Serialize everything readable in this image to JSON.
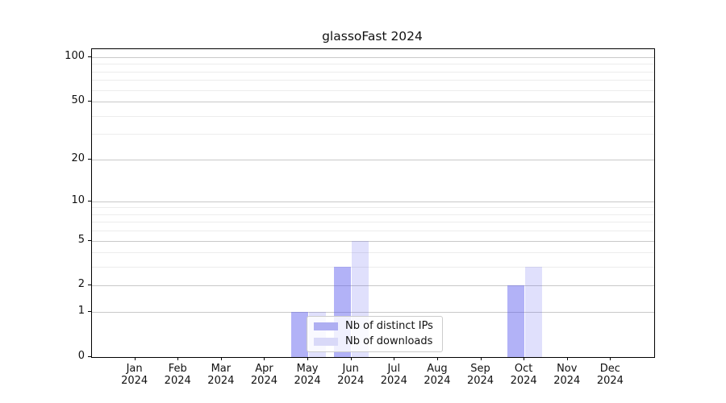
{
  "chart_data": {
    "type": "bar",
    "title": "glassoFast 2024",
    "categories": [
      "Jan",
      "Feb",
      "Mar",
      "Apr",
      "May",
      "Jun",
      "Jul",
      "Aug",
      "Sep",
      "Oct",
      "Nov",
      "Dec"
    ],
    "x_sublabel": "2024",
    "series": [
      {
        "name": "Nb of distinct IPs",
        "color": "rgba(85,85,238,0.45)",
        "legend_color": "#aeaef2",
        "values": [
          0,
          0,
          0,
          0,
          1,
          3,
          0,
          0,
          0,
          2,
          0,
          0
        ]
      },
      {
        "name": "Nb of downloads",
        "color": "rgba(85,85,238,0.18)",
        "legend_color": "#d9d9f8",
        "values": [
          0,
          0,
          0,
          0,
          1,
          5,
          0,
          0,
          0,
          3,
          0,
          0
        ]
      }
    ],
    "y_ticks": [
      0,
      1,
      2,
      5,
      10,
      20,
      50,
      100
    ],
    "y_minor_gridlines": [
      3,
      4,
      6,
      7,
      8,
      9,
      30,
      40,
      60,
      70,
      80,
      90
    ],
    "ylim": [
      0,
      114
    ],
    "yscale": "log1p",
    "grid": "on",
    "legend_position": "lower-center-inside",
    "colors": {
      "grid_major": "#c9c9c9",
      "grid_minor": "#ececec",
      "axis": "#000000",
      "background": "#ffffff"
    }
  }
}
